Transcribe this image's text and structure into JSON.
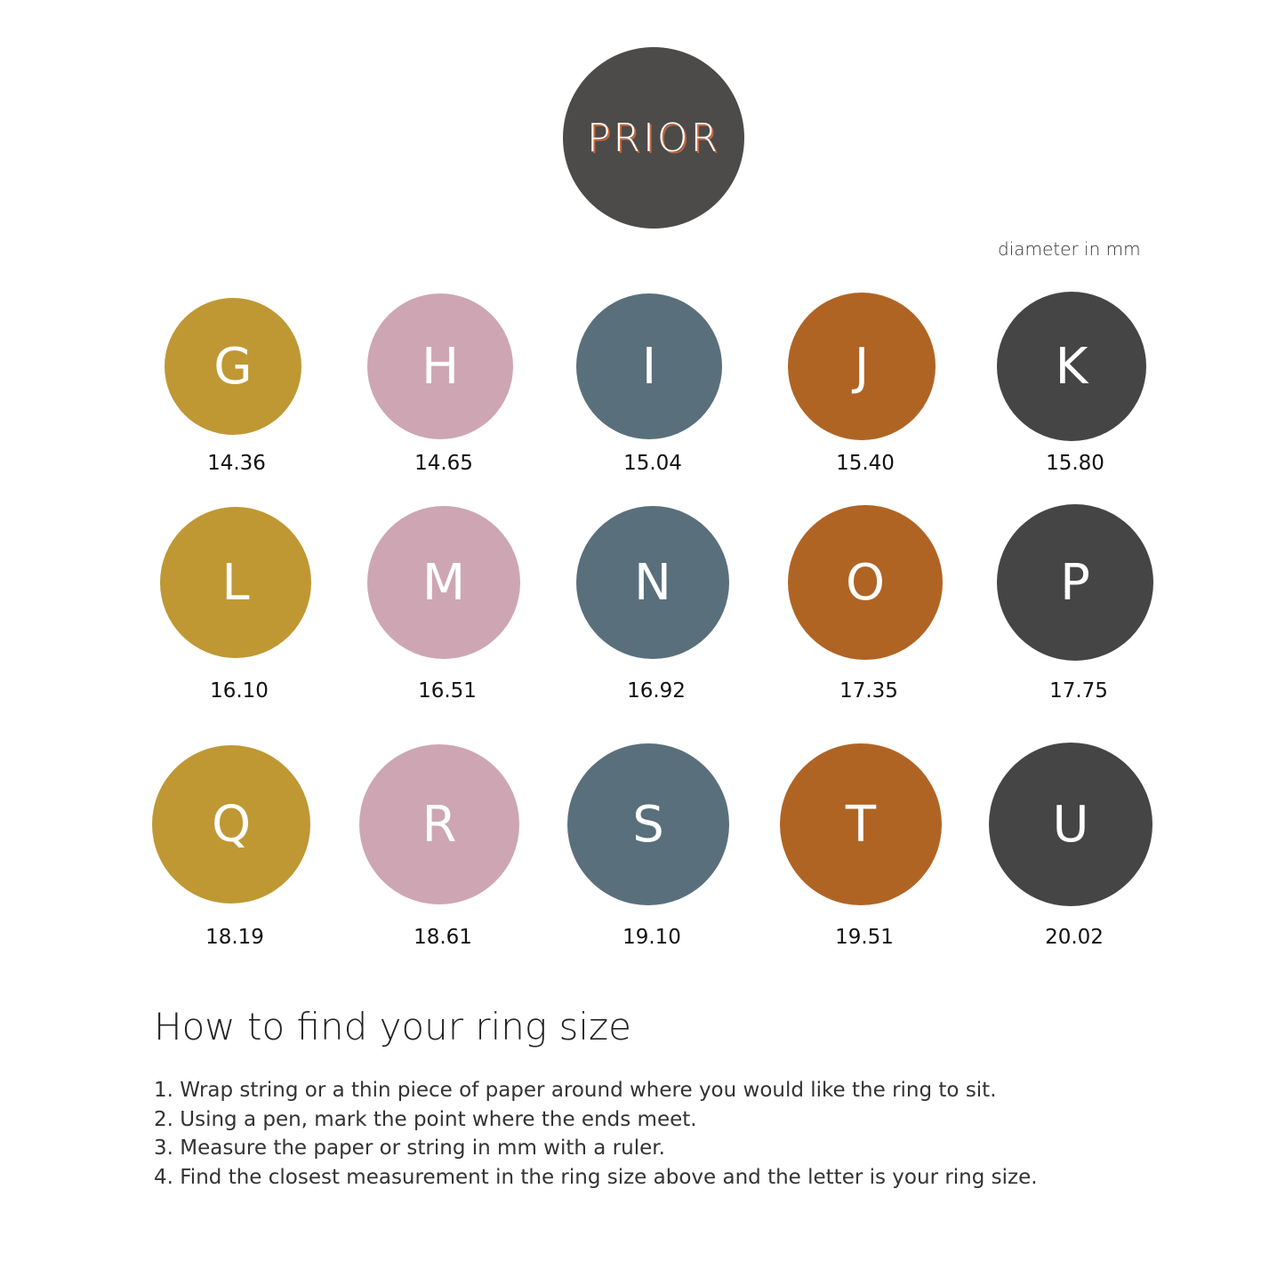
{
  "logo": {
    "text": "PRIOR",
    "bg": "#4c4b49",
    "accent": "#c8683a"
  },
  "unit_label": "diameter in mm",
  "colors": {
    "gold": "#bf9834",
    "pink": "#cea6b3",
    "slate": "#5a6f7c",
    "orange": "#b06424",
    "charcoal": "#454545"
  },
  "sizes": [
    {
      "letter": "G",
      "diameter": "14.36"
    },
    {
      "letter": "H",
      "diameter": "14.65"
    },
    {
      "letter": "I",
      "diameter": "15.04"
    },
    {
      "letter": "J",
      "diameter": "15.40"
    },
    {
      "letter": "K",
      "diameter": "15.80"
    },
    {
      "letter": "L",
      "diameter": "16.10"
    },
    {
      "letter": "M",
      "diameter": "16.51"
    },
    {
      "letter": "N",
      "diameter": "16.92"
    },
    {
      "letter": "O",
      "diameter": "17.35"
    },
    {
      "letter": "P",
      "diameter": "17.75"
    },
    {
      "letter": "Q",
      "diameter": "18.19"
    },
    {
      "letter": "R",
      "diameter": "18.61"
    },
    {
      "letter": "S",
      "diameter": "19.10"
    },
    {
      "letter": "T",
      "diameter": "19.51"
    },
    {
      "letter": "U",
      "diameter": "20.02"
    }
  ],
  "instructions": {
    "title": "How to find your ring size",
    "steps": [
      "1. Wrap string or a thin piece of paper around where you would like the ring to sit.",
      "2. Using a pen, mark the point where the ends meet.",
      "3. Measure the paper or string in mm with a ruler.",
      "4. Find the closest measurement in the ring size above and the letter is your ring size."
    ]
  }
}
